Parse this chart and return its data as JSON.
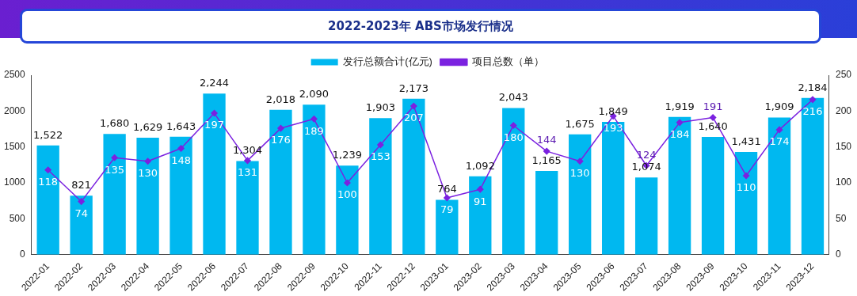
{
  "chart_data": {
    "type": "bar",
    "title": "2022-2023年 ABS市场发行情况",
    "categories": [
      "2022-01",
      "2022-02",
      "2022-03",
      "2022-04",
      "2022-05",
      "2022-06",
      "2022-07",
      "2022-08",
      "2022-09",
      "2022-10",
      "2022-11",
      "2022-12",
      "2023-01",
      "2023-02",
      "2023-03",
      "2023-04",
      "2023-05",
      "2023-06",
      "2023-07",
      "2023-08",
      "2023-09",
      "2023-10",
      "2023-11",
      "2023-12"
    ],
    "series": [
      {
        "name": "发行总额合计(亿元)",
        "color": "#00b8f0",
        "values": [
          1522,
          821,
          1680,
          1629,
          1643,
          2244,
          1304,
          2018,
          2090,
          1239,
          1903,
          2173,
          764,
          1092,
          2043,
          1165,
          1675,
          1849,
          1074,
          1919,
          1640,
          1431,
          1909,
          2184
        ],
        "value_labels": [
          "1,522",
          "821",
          "1,680",
          "1,629",
          "1,643",
          "2,244",
          "1,304",
          "2,018",
          "2,090",
          "1,239",
          "1,903",
          "2,173",
          "764",
          "1,092",
          "2,043",
          "1,165",
          "1,675",
          "1,849",
          "1,074",
          "1,919",
          "1,640",
          "1,431",
          "1,909",
          "2,184"
        ]
      },
      {
        "name": "项目总数（单）",
        "type": "line",
        "axis": "y2",
        "color": "#7b22e0",
        "values": [
          118,
          74,
          135,
          130,
          148,
          197,
          131,
          176,
          189,
          100,
          153,
          207,
          79,
          91,
          180,
          144,
          130,
          193,
          124,
          184,
          191,
          110,
          174,
          216
        ],
        "value_labels": [
          "118",
          "74",
          "135",
          "130",
          "148",
          "197",
          "131",
          "176",
          "189",
          "100",
          "153",
          "207",
          "79",
          "91",
          "180",
          "144",
          "130",
          "193",
          "124",
          "184",
          "191",
          "110",
          "174",
          "216"
        ]
      }
    ],
    "ylim": [
      0,
      2500
    ],
    "yticks": [
      0,
      500,
      1000,
      1500,
      2000,
      2500
    ],
    "y2lim": [
      0,
      250
    ],
    "y2ticks": [
      0,
      50,
      100,
      150,
      200,
      250
    ],
    "grid": false,
    "legend": "top",
    "marker": "diamond",
    "line_style": "solid"
  }
}
